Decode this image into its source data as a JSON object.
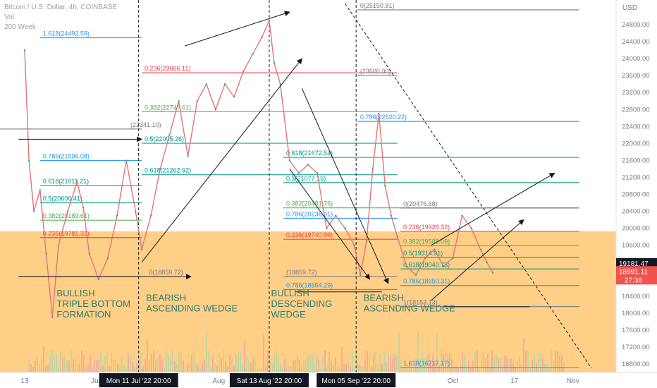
{
  "header": {
    "symbol": "Bitcoin / U.S. Dollar, 4h, COINBASE",
    "vol_label": "Vol",
    "ma_label": "200 Week",
    "currency": "USD"
  },
  "chart_data": {
    "type": "line",
    "ylim": [
      16600,
      25300
    ],
    "y_ticks": [
      16800,
      17200,
      17600,
      18000,
      18400,
      18800,
      19200,
      19600,
      20000,
      20400,
      20800,
      21200,
      21600,
      22000,
      22400,
      22800,
      23200,
      23600,
      24000,
      24400,
      24800
    ],
    "x_labels": [
      {
        "text": "13",
        "x": 0.04
      },
      {
        "text": "Jul",
        "x": 0.155
      },
      {
        "text": "Aug",
        "x": 0.355
      },
      {
        "text": "Oct",
        "x": 0.735
      },
      {
        "text": "17",
        "x": 0.835
      },
      {
        "text": "Nov",
        "x": 0.93
      }
    ],
    "date_markers": [
      {
        "text": "Mon 11 Jul '22   20:00",
        "x": 0.225
      },
      {
        "text": "Sat 13 Aug '22   20:00",
        "x": 0.437
      },
      {
        "text": "Mon 05 Sep '22   20:00",
        "x": 0.578
      }
    ],
    "price_series": [
      {
        "x": 0.04,
        "y": 24200
      },
      {
        "x": 0.047,
        "y": 21600
      },
      {
        "x": 0.055,
        "y": 20400
      },
      {
        "x": 0.065,
        "y": 20900
      },
      {
        "x": 0.075,
        "y": 19400
      },
      {
        "x": 0.085,
        "y": 17900
      },
      {
        "x": 0.095,
        "y": 19600
      },
      {
        "x": 0.11,
        "y": 20400
      },
      {
        "x": 0.125,
        "y": 21100
      },
      {
        "x": 0.135,
        "y": 20500
      },
      {
        "x": 0.145,
        "y": 19400
      },
      {
        "x": 0.16,
        "y": 18800
      },
      {
        "x": 0.175,
        "y": 19300
      },
      {
        "x": 0.19,
        "y": 20300
      },
      {
        "x": 0.205,
        "y": 21600
      },
      {
        "x": 0.22,
        "y": 20400
      },
      {
        "x": 0.23,
        "y": 19500
      },
      {
        "x": 0.245,
        "y": 20300
      },
      {
        "x": 0.26,
        "y": 21400
      },
      {
        "x": 0.275,
        "y": 22200
      },
      {
        "x": 0.29,
        "y": 23000
      },
      {
        "x": 0.305,
        "y": 21700
      },
      {
        "x": 0.32,
        "y": 23000
      },
      {
        "x": 0.335,
        "y": 23400
      },
      {
        "x": 0.35,
        "y": 22800
      },
      {
        "x": 0.365,
        "y": 23400
      },
      {
        "x": 0.38,
        "y": 23100
      },
      {
        "x": 0.395,
        "y": 23700
      },
      {
        "x": 0.41,
        "y": 24100
      },
      {
        "x": 0.425,
        "y": 24500
      },
      {
        "x": 0.437,
        "y": 24900
      },
      {
        "x": 0.445,
        "y": 23900
      },
      {
        "x": 0.455,
        "y": 23400
      },
      {
        "x": 0.47,
        "y": 21600
      },
      {
        "x": 0.485,
        "y": 21300
      },
      {
        "x": 0.5,
        "y": 21500
      },
      {
        "x": 0.515,
        "y": 21300
      },
      {
        "x": 0.53,
        "y": 20000
      },
      {
        "x": 0.545,
        "y": 20300
      },
      {
        "x": 0.56,
        "y": 20000
      },
      {
        "x": 0.575,
        "y": 19600
      },
      {
        "x": 0.585,
        "y": 18900
      },
      {
        "x": 0.595,
        "y": 19700
      },
      {
        "x": 0.605,
        "y": 21400
      },
      {
        "x": 0.615,
        "y": 22700
      },
      {
        "x": 0.625,
        "y": 21000
      },
      {
        "x": 0.635,
        "y": 20300
      },
      {
        "x": 0.645,
        "y": 19800
      },
      {
        "x": 0.66,
        "y": 19100
      },
      {
        "x": 0.675,
        "y": 18900
      },
      {
        "x": 0.69,
        "y": 19300
      },
      {
        "x": 0.705,
        "y": 19500
      },
      {
        "x": 0.72,
        "y": 19100
      },
      {
        "x": 0.735,
        "y": 19300
      },
      {
        "x": 0.75,
        "y": 20300
      },
      {
        "x": 0.765,
        "y": 20000
      },
      {
        "x": 0.78,
        "y": 19500
      },
      {
        "x": 0.79,
        "y": 19200
      },
      {
        "x": 0.8,
        "y": 18950
      }
    ],
    "fib_levels": [
      {
        "label": "0(25150.81)",
        "y": 25150.81,
        "color": "#787b86",
        "x0": 0.58,
        "x1": 0.94
      },
      {
        "label": "1.618(24492.59)",
        "y": 24492.59,
        "color": "#2196f3",
        "x0": 0.065,
        "x1": 0.23
      },
      {
        "label": "0.236(23666.11)",
        "y": 23666.11,
        "color": "#f23645",
        "x0": 0.23,
        "x1": 0.645
      },
      {
        "label": "(23600.00)",
        "y": 23600,
        "color": "#787b86",
        "x0": 0.58,
        "x1": 0.645
      },
      {
        "label": "0.382(22747.61)",
        "y": 22747.61,
        "color": "#4caf50",
        "x0": 0.23,
        "x1": 0.645
      },
      {
        "label": "0.786(22520.22)",
        "y": 22520.22,
        "color": "#2196f3",
        "x0": 0.58,
        "x1": 0.94
      },
      {
        "label": "(22341.10)",
        "y": 22341.1,
        "color": "#787b86",
        "x0": 0.0,
        "x1": 0.23
      },
      {
        "label": "0.5(22005.26)",
        "y": 22005.26,
        "color": "#009688",
        "x0": 0.23,
        "x1": 0.645
      },
      {
        "label": "0.618(21672.54)",
        "y": 21672.54,
        "color": "#009688",
        "x0": 0.46,
        "x1": 0.94
      },
      {
        "label": "0.786(21596.08)",
        "y": 21596.08,
        "color": "#2196f3",
        "x0": 0.065,
        "x1": 0.23
      },
      {
        "label": "0.618(21262.92)",
        "y": 21262.92,
        "color": "#009688",
        "x0": 0.23,
        "x1": 0.645
      },
      {
        "label": "0.618(21011.21)",
        "y": 21011.21,
        "color": "#009688",
        "x0": 0.065,
        "x1": 0.23
      },
      {
        "label": "0.5(21077.15)",
        "y": 21077.15,
        "color": "#009688",
        "x0": 0.46,
        "x1": 0.94
      },
      {
        "label": "0.5(20600.41)",
        "y": 20600.41,
        "color": "#009688",
        "x0": 0.065,
        "x1": 0.23
      },
      {
        "label": "0.382(20481.76)",
        "y": 20481.76,
        "color": "#4caf50",
        "x0": 0.46,
        "x1": 0.94
      },
      {
        "label": "0(20476.68)",
        "y": 20476.68,
        "color": "#787b86",
        "x0": 0.65,
        "x1": 0.94
      },
      {
        "label": "0.382(20189.61)",
        "y": 20189.61,
        "color": "#4caf50",
        "x0": 0.065,
        "x1": 0.23
      },
      {
        "label": "0.786(20236.01)",
        "y": 20236.01,
        "color": "#2196f3",
        "x0": 0.46,
        "x1": 0.645
      },
      {
        "label": "0.236(19928.32)",
        "y": 19928.32,
        "color": "#f23645",
        "x0": 0.65,
        "x1": 0.94
      },
      {
        "label": "0.236(19781.33)",
        "y": 19781.33,
        "color": "#f23645",
        "x0": 0.065,
        "x1": 0.23
      },
      {
        "label": "0.236(19740.99)",
        "y": 19740.99,
        "color": "#f23645",
        "x0": 0.46,
        "x1": 0.645
      },
      {
        "label": "0.382(19589.09)",
        "y": 19589.09,
        "color": "#4caf50",
        "x0": 0.65,
        "x1": 0.94
      },
      {
        "label": "0.5(19314.91)",
        "y": 19314.91,
        "color": "#009688",
        "x0": 0.65,
        "x1": 0.94
      },
      {
        "label": "0.618(19040.73)",
        "y": 19040.73,
        "color": "#009688",
        "x0": 0.65,
        "x1": 0.94
      },
      {
        "label": "0(18859.72)",
        "y": 18859.72,
        "color": "#787b86",
        "x0": 0.03,
        "x1": 0.23
      },
      {
        "label": "(18859.72)",
        "y": 18859.72,
        "color": "#787b86",
        "x0": 0.46,
        "x1": 0.645
      },
      {
        "label": "0.786(18650.31)",
        "y": 18650.31,
        "color": "#2196f3",
        "x0": 0.65,
        "x1": 0.94
      },
      {
        "label": "0.786(18554.29)",
        "y": 18554.29,
        "color": "#2196f3",
        "x0": 0.46,
        "x1": 0.645
      },
      {
        "label": "1(18153.13)",
        "y": 18153.13,
        "color": "#787b86",
        "x0": 0.65,
        "x1": 0.94
      },
      {
        "label": "1.618(16717.17)",
        "y": 16717.17,
        "color": "#2196f3",
        "x0": 0.65,
        "x1": 0.94
      }
    ],
    "annotations": [
      {
        "text": [
          "BULLISH",
          "TRIPLE BOTTOM",
          "FORMATION"
        ],
        "x": 0.092,
        "y": 18400
      },
      {
        "text": [
          "BEARISH",
          "ASCENDING WEDGE"
        ],
        "x": 0.237,
        "y": 18290
      },
      {
        "text": [
          "BULLISH",
          "DESCENDING",
          "WEDGE"
        ],
        "x": 0.44,
        "y": 18400
      },
      {
        "text": [
          "BEARISH",
          "ASCENDING WEDGE"
        ],
        "x": 0.59,
        "y": 18290
      }
    ],
    "current_price": {
      "value": "19181.47",
      "y": 19181.47
    },
    "last_price": {
      "value": "18991.11",
      "countdown": "27:38",
      "y": 18991.11
    }
  }
}
